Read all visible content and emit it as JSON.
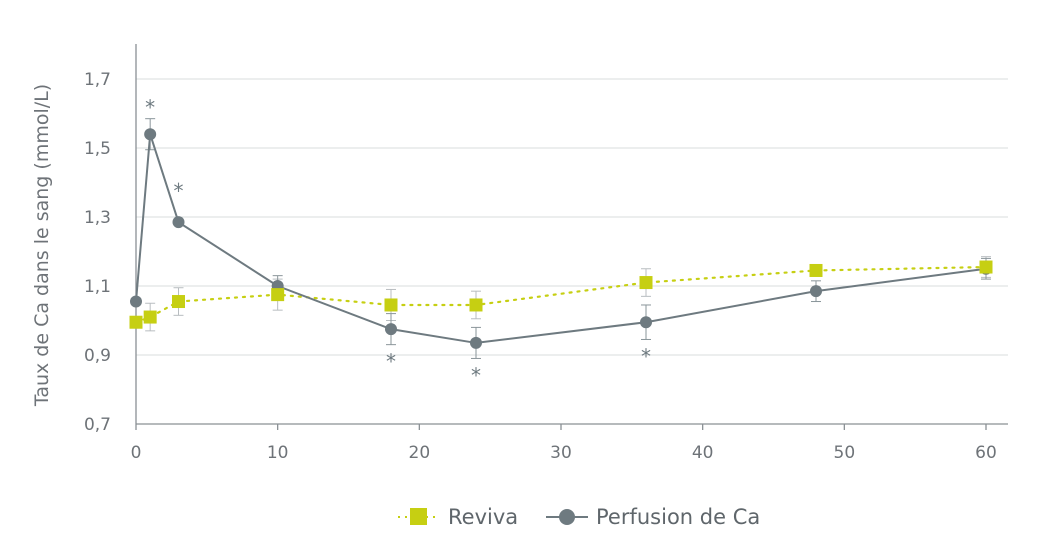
{
  "chart_data": {
    "type": "line",
    "ylabel": "Taux de Ca dans le sang (mmol/L)",
    "xlabel": "",
    "xlim": [
      0,
      60
    ],
    "ylim": [
      0.7,
      1.8
    ],
    "x_ticks": [
      0,
      10,
      20,
      30,
      40,
      50,
      60
    ],
    "x_tick_labels": [
      "0",
      "10",
      "20",
      "30",
      "40",
      "50",
      "60"
    ],
    "y_ticks": [
      0.7,
      0.9,
      1.1,
      1.3,
      1.5,
      1.7
    ],
    "y_tick_labels": [
      "0,7",
      "0,9",
      "1,1",
      "1,3",
      "1,5",
      "1,7"
    ],
    "grid": "horizontal",
    "legend_position": "bottom-center",
    "series": [
      {
        "name": "Reviva",
        "color": "#c6cf12",
        "line_style": "dotted",
        "marker": "square",
        "x": [
          0,
          1,
          3,
          10,
          18,
          24,
          36,
          48,
          60
        ],
        "y": [
          0.995,
          1.01,
          1.055,
          1.075,
          1.045,
          1.045,
          1.11,
          1.145,
          1.155
        ],
        "error": [
          null,
          null,
          null,
          null,
          null,
          null,
          null,
          null,
          null
        ]
      },
      {
        "name": "Perfusion de Ca",
        "color": "#6e7a80",
        "line_style": "solid",
        "marker": "circle",
        "x": [
          0,
          1,
          3,
          10,
          18,
          24,
          36,
          48,
          60
        ],
        "y": [
          1.055,
          1.54,
          1.285,
          1.1,
          0.975,
          0.935,
          0.995,
          1.085,
          1.15
        ],
        "error": [
          null,
          0.045,
          null,
          0.03,
          0.045,
          0.045,
          0.05,
          0.03,
          0.03
        ]
      }
    ],
    "reviva_error": [
      null,
      0.04,
      0.04,
      0.045,
      0.045,
      0.04,
      0.04,
      null,
      0.03
    ],
    "significance_markers": [
      {
        "x": 1,
        "label": "*",
        "position": "above"
      },
      {
        "x": 3,
        "label": "*",
        "position": "above"
      },
      {
        "x": 18,
        "label": "*",
        "position": "below"
      },
      {
        "x": 24,
        "label": "*",
        "position": "below"
      },
      {
        "x": 36,
        "label": "*",
        "position": "below"
      }
    ]
  }
}
